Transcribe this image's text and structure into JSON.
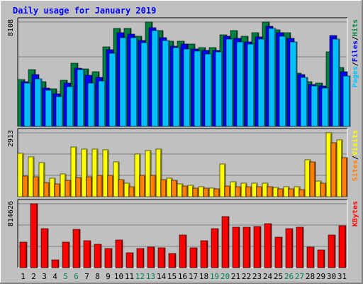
{
  "title": "Daily usage for January 2019",
  "colors": {
    "background": "#c0c0c0",
    "plot": "#c0c0c0",
    "hits": "#008040",
    "files": "#0000ff",
    "pages": "#00c0ff",
    "visits": "#ffff00",
    "sites": "#ff8000",
    "kbytes": "#ff0000",
    "title": "#0000ff",
    "weekend_label": "#00805c",
    "gridline": "#808080"
  },
  "chart_data": [
    {
      "type": "bar",
      "name": "hits-files-pages",
      "max_label": "8108",
      "ylim": [
        0,
        8108
      ],
      "legend": [
        "Pages",
        "/",
        "Files",
        "/",
        "Hits"
      ],
      "categories": [
        "1",
        "2",
        "3",
        "4",
        "5",
        "6",
        "7",
        "8",
        "9",
        "10",
        "11",
        "12",
        "13",
        "14",
        "15",
        "16",
        "17",
        "18",
        "19",
        "20",
        "21",
        "22",
        "23",
        "24",
        "25",
        "26",
        "27",
        "28",
        "29",
        "30",
        "31"
      ],
      "series": [
        {
          "name": "Hits",
          "values": [
            3660,
            4440,
            3480,
            2940,
            3570,
            4910,
            4450,
            4240,
            6190,
            7630,
            7630,
            6980,
            8108,
            7460,
            6630,
            6630,
            6420,
            6130,
            6130,
            7140,
            7430,
            6980,
            7270,
            8108,
            7500,
            7290,
            4160,
            3470,
            3350,
            5790,
            4590
          ]
        },
        {
          "name": "Files",
          "values": [
            3490,
            4010,
            3000,
            2560,
            3360,
            4520,
            3960,
            3830,
            5950,
            7280,
            7170,
            6700,
            7690,
            6880,
            6220,
            6420,
            6030,
            5900,
            5880,
            6980,
            6820,
            6570,
            6970,
            7800,
            7280,
            6860,
            4000,
            3270,
            3150,
            7070,
            4230
          ]
        },
        {
          "name": "Pages",
          "values": [
            3380,
            3690,
            2790,
            2310,
            3100,
            4400,
            3390,
            3520,
            5700,
            6870,
            6900,
            6510,
            7450,
            6660,
            6100,
            6000,
            5850,
            5650,
            5770,
            6800,
            6550,
            6410,
            6780,
            7620,
            6980,
            6580,
            3790,
            3120,
            2960,
            6780,
            3900
          ]
        }
      ]
    },
    {
      "type": "bar",
      "name": "visits-sites",
      "max_label": "2913",
      "ylim": [
        0,
        2913
      ],
      "legend": [
        "Sites",
        "/",
        "Visits"
      ],
      "categories": [
        "1",
        "2",
        "3",
        "4",
        "5",
        "6",
        "7",
        "8",
        "9",
        "10",
        "11",
        "12",
        "13",
        "14",
        "15",
        "16",
        "17",
        "18",
        "19",
        "20",
        "21",
        "22",
        "23",
        "24",
        "25",
        "26",
        "27",
        "28",
        "29",
        "30",
        "31"
      ],
      "series": [
        {
          "name": "Visits",
          "values": [
            1980,
            1800,
            1540,
            840,
            1030,
            2270,
            2180,
            2180,
            2130,
            1580,
            610,
            1950,
            2120,
            2160,
            850,
            570,
            520,
            460,
            400,
            1480,
            670,
            600,
            600,
            620,
            420,
            450,
            450,
            1680,
            700,
            2913,
            2580
          ]
        },
        {
          "name": "Sites",
          "values": [
            930,
            920,
            660,
            570,
            740,
            860,
            900,
            970,
            960,
            770,
            460,
            970,
            960,
            790,
            760,
            480,
            400,
            390,
            350,
            470,
            440,
            450,
            460,
            440,
            360,
            340,
            320,
            1600,
            610,
            2450,
            1780
          ]
        }
      ]
    },
    {
      "type": "bar",
      "name": "kbytes",
      "max_label": "814626",
      "ylim": [
        0,
        814626
      ],
      "legend": [
        "KBytes"
      ],
      "categories": [
        "1",
        "2",
        "3",
        "4",
        "5",
        "6",
        "7",
        "8",
        "9",
        "10",
        "11",
        "12",
        "13",
        "14",
        "15",
        "16",
        "17",
        "18",
        "19",
        "20",
        "21",
        "22",
        "23",
        "24",
        "25",
        "26",
        "27",
        "28",
        "29",
        "30",
        "31"
      ],
      "series": [
        {
          "name": "KBytes",
          "values": [
            330000,
            814626,
            495000,
            100000,
            330000,
            490000,
            340000,
            295000,
            240000,
            350000,
            190000,
            240000,
            260000,
            250000,
            180000,
            420000,
            255000,
            340000,
            495000,
            655000,
            520000,
            520000,
            525000,
            565000,
            390000,
            495000,
            520000,
            260000,
            230000,
            415000,
            535000
          ]
        }
      ]
    }
  ],
  "weekend_days": [
    5,
    6,
    12,
    13,
    19,
    20,
    26,
    27
  ]
}
